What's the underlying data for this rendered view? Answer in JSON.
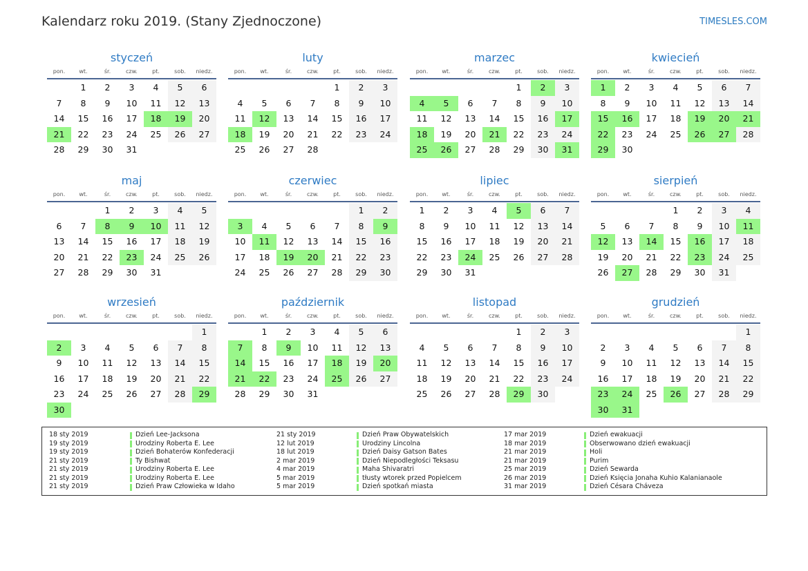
{
  "header": {
    "title": "Kalendarz roku 2019. (Stany Zjednoczone)",
    "brand": "TIMESLES.COM"
  },
  "weekdays": [
    "pon.",
    "wt.",
    "śr.",
    "czw.",
    "pt.",
    "sob.",
    "niedz."
  ],
  "colors": {
    "holiday": "#99f78a",
    "weekend": "#f3f3f3",
    "month_title": "#2f7bc4"
  },
  "months": [
    {
      "name": "styczeń",
      "first_weekday": 1,
      "days": 31,
      "holidays": [
        18,
        19,
        21
      ]
    },
    {
      "name": "luty",
      "first_weekday": 4,
      "days": 28,
      "holidays": [
        12,
        18
      ]
    },
    {
      "name": "marzec",
      "first_weekday": 4,
      "days": 31,
      "holidays": [
        2,
        4,
        5,
        17,
        18,
        21,
        25,
        26,
        31
      ]
    },
    {
      "name": "kwiecień",
      "first_weekday": 0,
      "days": 30,
      "holidays": [
        1,
        15,
        16,
        19,
        20,
        21,
        22,
        26,
        27,
        29
      ]
    },
    {
      "name": "maj",
      "first_weekday": 2,
      "days": 31,
      "holidays": [
        8,
        9,
        10,
        23
      ]
    },
    {
      "name": "czerwiec",
      "first_weekday": 5,
      "days": 30,
      "holidays": [
        3,
        9,
        11,
        19,
        20
      ]
    },
    {
      "name": "lipiec",
      "first_weekday": 0,
      "days": 31,
      "holidays": [
        5,
        24
      ]
    },
    {
      "name": "sierpień",
      "first_weekday": 3,
      "days": 31,
      "holidays": [
        11,
        12,
        14,
        16,
        23,
        27
      ]
    },
    {
      "name": "wrzesień",
      "first_weekday": 6,
      "days": 30,
      "holidays": [
        2,
        29,
        30
      ]
    },
    {
      "name": "październik",
      "first_weekday": 1,
      "days": 31,
      "holidays": [
        7,
        9,
        14,
        18,
        20,
        21,
        22,
        25
      ]
    },
    {
      "name": "listopad",
      "first_weekday": 4,
      "days": 30,
      "holidays": [
        29
      ]
    },
    {
      "name": "grudzień",
      "first_weekday": 6,
      "days": 31,
      "holidays": [
        23,
        24,
        26,
        30,
        31
      ]
    }
  ],
  "holiday_list": [
    {
      "date": "18 sty 2019",
      "name": "Dzień Lee-Jacksona"
    },
    {
      "date": "19 sty 2019",
      "name": "Urodziny Roberta E. Lee"
    },
    {
      "date": "19 sty 2019",
      "name": "Dzień Bohaterów Konfederacji"
    },
    {
      "date": "21 sty 2019",
      "name": "Ty Bishwat"
    },
    {
      "date": "21 sty 2019",
      "name": "Urodziny Roberta E. Lee"
    },
    {
      "date": "21 sty 2019",
      "name": "Urodziny Roberta E. Lee"
    },
    {
      "date": "21 sty 2019",
      "name": "Dzień Praw Człowieka w Idaho"
    },
    {
      "date": "21 sty 2019",
      "name": "Dzień Praw Obywatelskich"
    },
    {
      "date": "12 lut 2019",
      "name": "Urodziny Lincolna"
    },
    {
      "date": "18 lut 2019",
      "name": "Dzień Daisy Gatson Bates"
    },
    {
      "date": "2 mar 2019",
      "name": "Dzień Niepodległości Teksasu"
    },
    {
      "date": "4 mar 2019",
      "name": "Maha Shivaratri"
    },
    {
      "date": "5 mar 2019",
      "name": "tłusty wtorek przed Popielcem"
    },
    {
      "date": "5 mar 2019",
      "name": "Dzień spotkań miasta"
    },
    {
      "date": "17 mar 2019",
      "name": "Dzień ewakuacji"
    },
    {
      "date": "18 mar 2019",
      "name": "Obserwowano dzień ewakuacji"
    },
    {
      "date": "21 mar 2019",
      "name": "Holi"
    },
    {
      "date": "21 mar 2019",
      "name": "Purim"
    },
    {
      "date": "25 mar 2019",
      "name": "Dzień Sewarda"
    },
    {
      "date": "26 mar 2019",
      "name": "Dzień Księcia Jonaha Kuhio Kalanianaole"
    },
    {
      "date": "31 mar 2019",
      "name": "Dzień Césara Cháveza"
    }
  ]
}
